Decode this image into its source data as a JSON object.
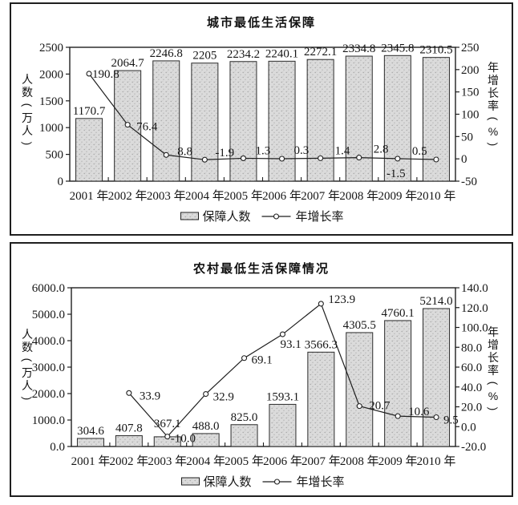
{
  "page": {
    "background": "#ffffff",
    "ink_color": "#1f1f1f",
    "bar_fill_color": "#dbdbdb",
    "bar_speckle_color": "#a3a3a3",
    "bar_border_color": "#2b2b2b"
  },
  "chart_data": [
    {
      "type": "bar",
      "title": "城市最低生活保障",
      "categories": [
        "2001 年",
        "2002 年",
        "2003 年",
        "2004 年",
        "2005 年",
        "2006 年",
        "2007 年",
        "2008 年",
        "2009 年",
        "2010 年"
      ],
      "series": [
        {
          "name": "保障人数",
          "kind": "bar",
          "axis": "left",
          "values": [
            1170.7,
            2064.7,
            2246.8,
            2205,
            2234.2,
            2240.1,
            2272.1,
            2334.8,
            2345.8,
            2310.5
          ],
          "labels": [
            "1170.7",
            "2064.7",
            "2246.8",
            "2205",
            "2234.2",
            "2240.1",
            "2272.1",
            "2334.8",
            "2345.8",
            "2310.5"
          ]
        },
        {
          "name": "年增长率",
          "kind": "line",
          "axis": "right",
          "values": [
            190.8,
            76.4,
            8.8,
            -1.9,
            1.3,
            0.3,
            1.4,
            2.8,
            0.5,
            -1.5
          ],
          "labels": [
            "190.8",
            "76.4",
            "8.8",
            "-1.9",
            "1.3",
            "0.3",
            "1.4",
            "2.8",
            "0.5",
            "-1.5"
          ],
          "label_offsets": [
            [
              4,
              5
            ],
            [
              11,
              7
            ],
            [
              14,
              0
            ],
            [
              13,
              -4
            ],
            [
              15,
              -5
            ],
            [
              15,
              -6
            ],
            [
              18,
              -5
            ],
            [
              18,
              -6
            ],
            [
              18,
              -5
            ],
            [
              -62,
              22
            ]
          ]
        }
      ],
      "left_axis": {
        "label": "人数(万人)",
        "min": 0,
        "max": 2500,
        "step": 500,
        "ticks": [
          "2500",
          "2000",
          "1500",
          "1000",
          "500",
          "0"
        ]
      },
      "right_axis": {
        "label": "年增长率(%)",
        "min": -50,
        "max": 250,
        "step": 50,
        "ticks": [
          "250",
          "200",
          "150",
          "100",
          "50",
          "0",
          "-50"
        ]
      },
      "legend": [
        {
          "label": "保障人数",
          "marker": "bar"
        },
        {
          "label": "年增长率",
          "marker": "line"
        }
      ],
      "grid": false,
      "legend_position": "bottom"
    },
    {
      "type": "bar",
      "title": "农村最低生活保障情况",
      "categories": [
        "2001 年",
        "2002 年",
        "2003 年",
        "2004 年",
        "2005 年",
        "2006 年",
        "2007 年",
        "2008 年",
        "2009 年",
        "2010 年"
      ],
      "series": [
        {
          "name": "保障人数",
          "kind": "bar",
          "axis": "left",
          "values": [
            304.6,
            407.8,
            367.1,
            488.0,
            825.0,
            1593.1,
            3566.3,
            4305.5,
            4760.1,
            5214.0
          ],
          "labels": [
            "304.6",
            "407.8",
            "367.1",
            "488.0",
            "825.0",
            "1593.1",
            "3566.3",
            "4305.5",
            "4760.1",
            "5214.0"
          ],
          "label_dy": [
            -5,
            -5,
            -12,
            -5,
            -5,
            -5,
            -5,
            -5,
            -5,
            -5
          ]
        },
        {
          "name": "年增长率",
          "kind": "line",
          "axis": "right",
          "values": [
            null,
            33.9,
            -10.0,
            32.9,
            69.1,
            93.1,
            123.9,
            20.7,
            10.6,
            9.5
          ],
          "labels": [
            null,
            "33.9",
            "-10.0",
            "32.9",
            "69.1",
            "93.1",
            "123.9",
            "20.7",
            "10.6",
            "9.5"
          ],
          "label_offsets": [
            null,
            [
              13,
              8
            ],
            [
              4,
              7
            ],
            [
              9,
              8
            ],
            [
              9,
              7
            ],
            [
              -3,
              17
            ],
            [
              9,
              -1
            ],
            [
              12,
              4
            ],
            [
              13,
              -1
            ],
            [
              9,
              8
            ]
          ]
        }
      ],
      "left_axis": {
        "label": "人数(万人)",
        "min": 0,
        "max": 6000,
        "step": 1000,
        "ticks": [
          "6000.0",
          "5000.0",
          "4000.0",
          "3000.0",
          "2000.0",
          "1000.0",
          "0.0"
        ]
      },
      "right_axis": {
        "label": "年增长率(%)",
        "min": -20,
        "max": 140,
        "step": 20,
        "ticks": [
          "140.0",
          "120.0",
          "100.0",
          "80.0",
          "60.0",
          "40.0",
          "20.0",
          "0.0",
          "-20.0"
        ]
      },
      "legend": [
        {
          "label": "保障人数",
          "marker": "bar"
        },
        {
          "label": "年增长率",
          "marker": "line"
        }
      ],
      "grid": false,
      "legend_position": "bottom"
    }
  ]
}
